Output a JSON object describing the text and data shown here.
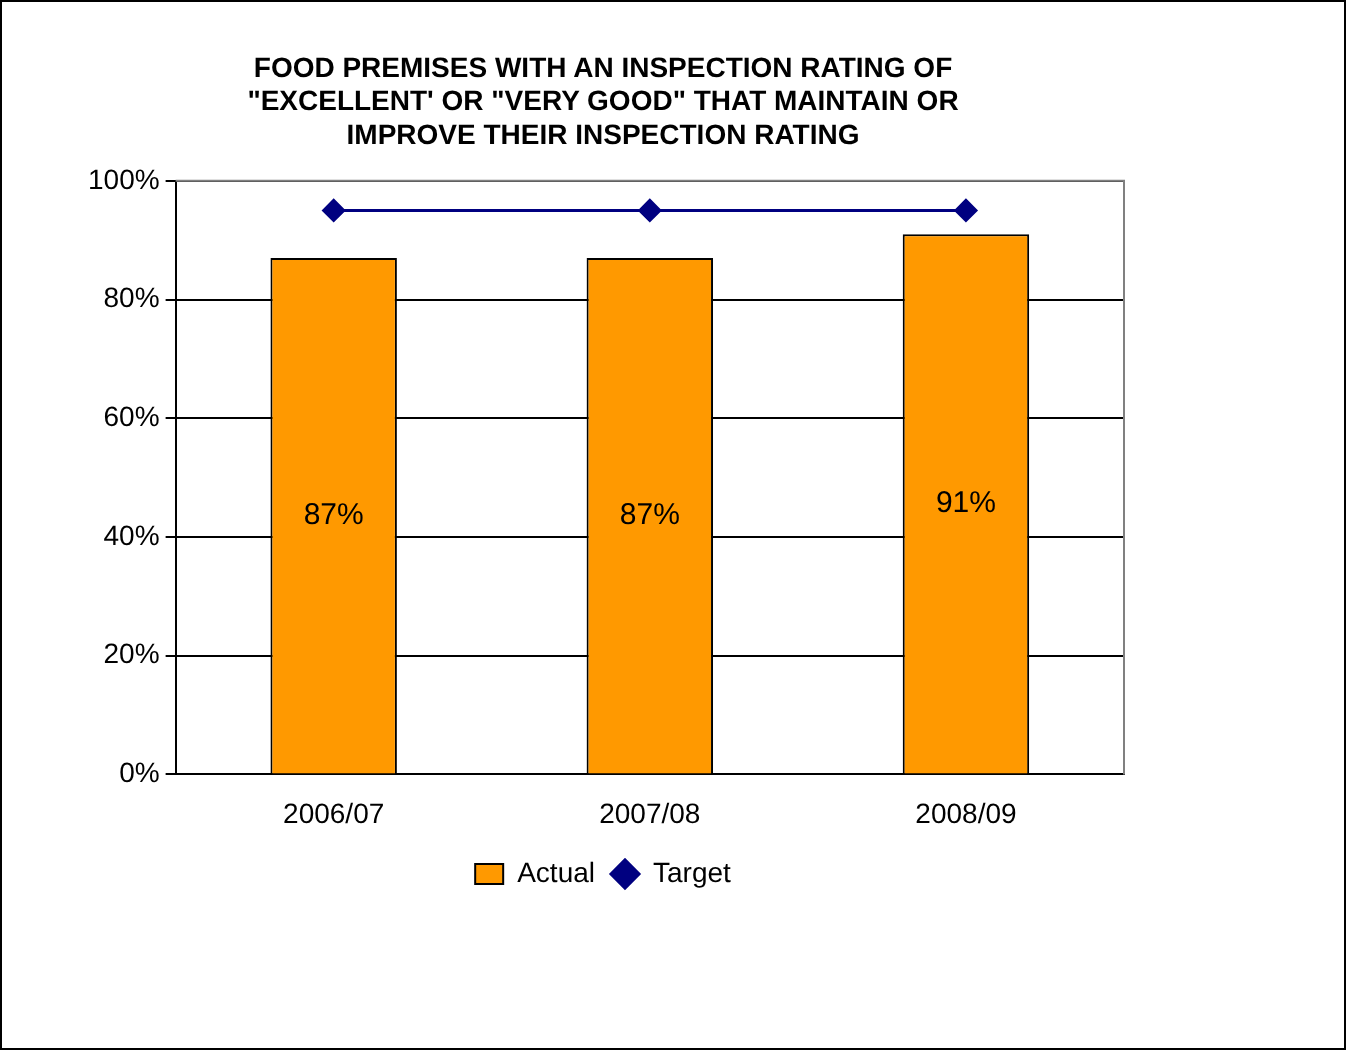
{
  "chart_data": {
    "type": "bar",
    "title": "FOOD PREMISES WITH AN INSPECTION RATING OF \"EXCELLENT' OR \"VERY GOOD\" THAT MAINTAIN OR IMPROVE THEIR INSPECTION RATING",
    "categories": [
      "2006/07",
      "2007/08",
      "2008/09"
    ],
    "series": [
      {
        "name": "Actual",
        "color": "#ff9900",
        "values": [
          87,
          87,
          91
        ],
        "value_labels": [
          "87%",
          "87%",
          "91%"
        ]
      },
      {
        "name": "Target",
        "type": "line",
        "color": "#000080",
        "values": [
          95,
          95,
          95
        ],
        "marker": "diamond"
      }
    ],
    "ylim": [
      0,
      100
    ],
    "yticks": [
      {
        "value": 0,
        "label": "0%"
      },
      {
        "value": 20,
        "label": "20%"
      },
      {
        "value": 40,
        "label": "40%"
      },
      {
        "value": 60,
        "label": "60%"
      },
      {
        "value": 80,
        "label": "80%"
      },
      {
        "value": 100,
        "label": "100%"
      }
    ],
    "grid": "y",
    "legend": "bottom"
  }
}
